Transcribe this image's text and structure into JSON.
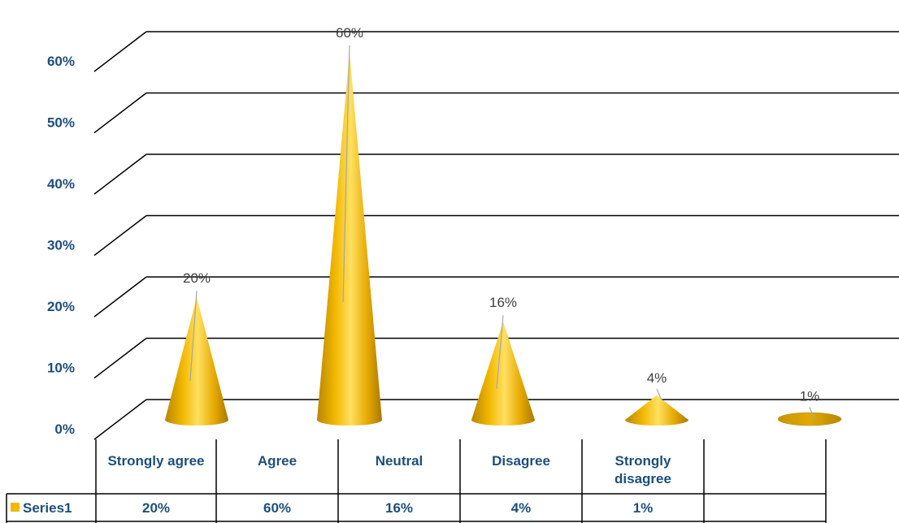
{
  "chart_data": {
    "type": "bar",
    "bar_shape": "cone-3d",
    "categories": [
      "Strongly agree",
      "Agree",
      "Neutral",
      "Disagree",
      "Strongly disagree"
    ],
    "series": [
      {
        "name": "Series1",
        "values": [
          20,
          60,
          16,
          4,
          1
        ],
        "color": "#F2B800"
      }
    ],
    "value_labels": [
      "20%",
      "60%",
      "16%",
      "4%",
      "1%"
    ],
    "y_ticks": [
      "0%",
      "10%",
      "20%",
      "30%",
      "40%",
      "50%",
      "60%"
    ],
    "ylim": [
      0,
      60
    ],
    "grid": true,
    "data_table": true,
    "legend": "data-table"
  }
}
